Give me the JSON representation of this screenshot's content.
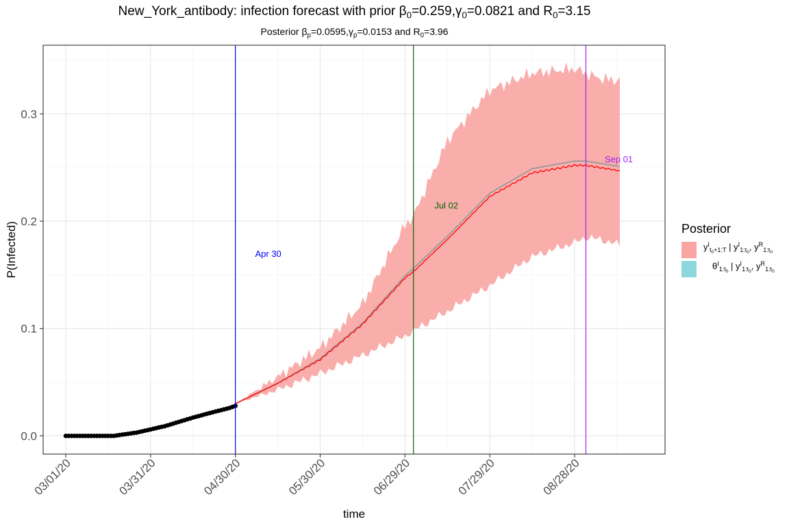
{
  "title": {
    "prefix": "New_York_antibody: infection forecast with prior ",
    "beta_sym": "β",
    "beta_sub": "0",
    "beta_val": "=0.259,",
    "gamma_sym": "γ",
    "gamma_sub": "0",
    "gamma_val": "=0.0821 and R",
    "r_sub": "0",
    "r_val": "=3.15"
  },
  "subtitle": {
    "prefix": "Posterior ",
    "beta_sym": "β",
    "beta_sub": "p",
    "beta_val": "=0.0595,",
    "gamma_sym": "γ",
    "gamma_sub": "p",
    "gamma_val": "=0.0153 and R",
    "r_sub": "0",
    "r_val": "=3.96"
  },
  "legend": {
    "title": "Posterior",
    "items": [
      {
        "color": "#F8A5A3",
        "main": "y",
        "sup": "I",
        "sub": "t0+1:T",
        "rest": " | y",
        "rest_sup": "I",
        "rest_sub": "1:t0",
        "tail": ", y",
        "tail_sup": "R",
        "tail_sub": "1:t0"
      },
      {
        "color": "#8CD8DC",
        "main": "θ",
        "sup": "I",
        "sub": "1:t0",
        "rest": " | y",
        "rest_sup": "I",
        "rest_sub": "1:t0",
        "tail": ", y",
        "tail_sup": "R",
        "tail_sub": "1:t0"
      }
    ]
  },
  "chart_data": {
    "type": "line",
    "xlabel": "time",
    "ylabel": "P(Infected)",
    "x_ticks": [
      "03/01/20",
      "03/31/20",
      "04/30/20",
      "05/30/20",
      "06/29/20",
      "07/29/20",
      "08/28/20"
    ],
    "y_ticks": [
      "0.0",
      "0.1",
      "0.2",
      "0.3"
    ],
    "x_domain": [
      "2020-02-22",
      "2020-09-29"
    ],
    "ylim": [
      -0.017,
      0.364
    ],
    "grid": true,
    "legend_position": "right",
    "observed": {
      "color": "#000000",
      "start": "2020-03-01",
      "end": "2020-04-30",
      "knots": [
        [
          0,
          0.0
        ],
        [
          17,
          0.0
        ],
        [
          25,
          0.003
        ],
        [
          35,
          0.009
        ],
        [
          45,
          0.017
        ],
        [
          52,
          0.022
        ],
        [
          58,
          0.026
        ],
        [
          61,
          0.029
        ]
      ]
    },
    "forecast_band": {
      "color": "#F8A5A3",
      "dates": [
        "2020-04-30",
        "2020-05-15",
        "2020-05-30",
        "2020-06-14",
        "2020-06-29",
        "2020-07-02",
        "2020-07-14",
        "2020-07-29",
        "2020-08-13",
        "2020-08-28",
        "2020-09-01",
        "2020-09-06",
        "2020-09-13"
      ],
      "upper": [
        0.03,
        0.055,
        0.082,
        0.123,
        0.196,
        0.205,
        0.275,
        0.322,
        0.338,
        0.342,
        0.338,
        0.333,
        0.331
      ],
      "lower": [
        0.03,
        0.043,
        0.058,
        0.075,
        0.093,
        0.098,
        0.116,
        0.14,
        0.167,
        0.18,
        0.185,
        0.183,
        0.178
      ]
    },
    "posterior_median": {
      "color": "#FF0000",
      "dates": [
        "2020-04-30",
        "2020-05-15",
        "2020-05-30",
        "2020-06-14",
        "2020-06-29",
        "2020-07-02",
        "2020-07-14",
        "2020-07-29",
        "2020-08-13",
        "2020-08-28",
        "2020-09-01",
        "2020-09-13"
      ],
      "values": [
        0.03,
        0.049,
        0.071,
        0.104,
        0.147,
        0.153,
        0.183,
        0.223,
        0.245,
        0.252,
        0.252,
        0.247
      ]
    },
    "prior_mean": {
      "color": "#999999",
      "dates": [
        "2020-04-30",
        "2020-05-15",
        "2020-05-30",
        "2020-06-14",
        "2020-06-29",
        "2020-07-02",
        "2020-07-14",
        "2020-07-29",
        "2020-08-13",
        "2020-08-28",
        "2020-09-01",
        "2020-09-13"
      ],
      "values": [
        0.03,
        0.049,
        0.072,
        0.105,
        0.149,
        0.156,
        0.186,
        0.226,
        0.249,
        0.256,
        0.256,
        0.251
      ]
    },
    "vlines": [
      {
        "date": "2020-04-30",
        "label": "Apr 30",
        "color": "#0000FF",
        "label_y": 0.17,
        "label_side": "right"
      },
      {
        "date": "2020-07-02",
        "label": "Jul 02",
        "color": "#006400",
        "label_y": 0.215,
        "label_side": "right"
      },
      {
        "date": "2020-09-01",
        "label": "Sep 01",
        "color": "#A020F0",
        "label_y": 0.258,
        "label_side": "right"
      }
    ]
  }
}
